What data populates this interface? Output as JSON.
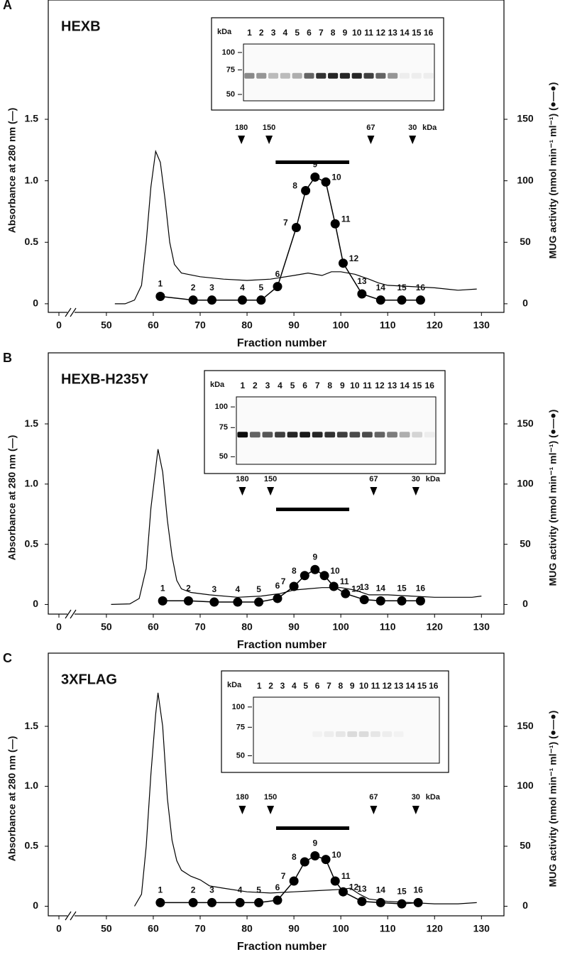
{
  "chart_data": [
    {
      "type": "line",
      "panel": "A",
      "title": "HEXB",
      "xlabel": "Fraction number",
      "ylabel": "Absorbance at 280 nm (—)",
      "y2label": "MUG activity (nmol min⁻¹ ml⁻¹) (●—●)",
      "xlim": [
        37.6,
        134.8
      ],
      "xticks": [
        0,
        50,
        60,
        70,
        80,
        90,
        100,
        110,
        120,
        130
      ],
      "axis_break": true,
      "ylim": [
        -0.07,
        2.47
      ],
      "yticks": [
        0,
        0.5,
        {
          "value": 1,
          "label": "1.0"
        },
        1.5
      ],
      "y2lim": [
        -7,
        247
      ],
      "y2ticks": [
        0,
        50,
        100,
        150
      ],
      "series": [
        {
          "color": "#000000",
          "x": [
            51.8,
            54,
            56,
            57.5,
            58.5,
            59.5,
            60.5,
            61.5,
            62.5,
            63.5,
            64.5,
            66,
            70,
            75,
            80,
            85,
            90,
            93,
            96,
            98,
            100,
            103,
            106,
            108,
            110,
            115,
            120,
            125,
            129
          ],
          "values": [
            0,
            0,
            0.03,
            0.15,
            0.5,
            0.95,
            1.24,
            1.15,
            0.85,
            0.5,
            0.32,
            0.25,
            0.22,
            0.2,
            0.19,
            0.2,
            0.23,
            0.25,
            0.23,
            0.26,
            0.26,
            0.24,
            0.2,
            0.17,
            0.15,
            0.14,
            0.13,
            0.11,
            0.12
          ]
        },
        {
          "color": "#000000",
          "axis": "y2",
          "marker": "circle",
          "x": [
            61.5,
            68.5,
            72.5,
            79,
            83,
            86.5,
            90.5,
            92.5,
            94.5,
            96.8,
            98.8,
            100.5,
            104.5,
            108.5,
            113,
            117
          ],
          "values": [
            6,
            3,
            3,
            3,
            3,
            14,
            62,
            92,
            103,
            99,
            65,
            33,
            8,
            3,
            3,
            3
          ],
          "point_labels": [
            1,
            2,
            3,
            4,
            5,
            6,
            7,
            8,
            9,
            10,
            11,
            12,
            13,
            14,
            15,
            16
          ]
        }
      ],
      "size_markers": [
        {
          "kda": 180,
          "fraction": 78.8
        },
        {
          "kda": 150,
          "fraction": 84.7
        },
        {
          "kda": 67,
          "fraction": 106.4
        },
        {
          "kda": 30,
          "fraction": 115.3
        }
      ],
      "size_marker_unit": "kDa",
      "pooled_range": [
        86.1,
        101.8
      ],
      "gel": {
        "unit": "kDa",
        "lanes": [
          1,
          2,
          3,
          4,
          5,
          6,
          7,
          8,
          9,
          10,
          11,
          12,
          13,
          14,
          15,
          16
        ],
        "ladder": [
          100,
          75,
          50
        ],
        "band_intensity": [
          0.45,
          0.4,
          0.25,
          0.25,
          0.3,
          0.6,
          0.8,
          0.85,
          0.85,
          0.85,
          0.75,
          0.6,
          0.4,
          0.05,
          0.05,
          0.05
        ]
      }
    },
    {
      "type": "line",
      "panel": "B",
      "title": "HEXB-H235Y",
      "xlabel": "Fraction number",
      "ylabel": "Absorbance at 280 nm (—)",
      "y2label": "MUG activity (nmol min⁻¹ ml⁻¹) (●—●)",
      "xlim": [
        37.6,
        134.8
      ],
      "xticks": [
        0,
        50,
        60,
        70,
        80,
        90,
        100,
        110,
        120,
        130
      ],
      "axis_break": true,
      "ylim": [
        -0.08,
        2.09
      ],
      "yticks": [
        0,
        0.5,
        {
          "value": 1,
          "label": "1.0"
        },
        1.5
      ],
      "y2lim": [
        -8,
        209
      ],
      "y2ticks": [
        0,
        50,
        100,
        150
      ],
      "series": [
        {
          "color": "#000000",
          "x": [
            51,
            55,
            57,
            58.5,
            59.5,
            61,
            62,
            63,
            64,
            65,
            66,
            68,
            72,
            78,
            83,
            87,
            90,
            93,
            96,
            100,
            103,
            106,
            110,
            115,
            120,
            125,
            128,
            130
          ],
          "values": [
            0,
            0.005,
            0.05,
            0.3,
            0.8,
            1.29,
            1.1,
            0.7,
            0.4,
            0.2,
            0.13,
            0.1,
            0.08,
            0.06,
            0.07,
            0.09,
            0.12,
            0.13,
            0.14,
            0.14,
            0.12,
            0.08,
            0.08,
            0.07,
            0.06,
            0.06,
            0.06,
            0.07
          ]
        },
        {
          "color": "#000000",
          "axis": "y2",
          "marker": "circle",
          "x": [
            62,
            67.5,
            73,
            78,
            82.5,
            86.5,
            90,
            92.3,
            94.5,
            96.5,
            98.5,
            101,
            105,
            108.5,
            113,
            117
          ],
          "values": [
            3,
            3,
            2,
            2,
            2,
            5,
            15,
            24,
            29,
            24,
            15,
            9,
            4,
            3,
            3,
            3
          ],
          "point_labels": [
            1,
            2,
            3,
            4,
            5,
            6,
            7,
            8,
            9,
            10,
            11,
            12,
            13,
            14,
            15,
            16
          ]
        }
      ],
      "size_markers": [
        {
          "kda": 180,
          "fraction": 79
        },
        {
          "kda": 150,
          "fraction": 85
        },
        {
          "kda": 67,
          "fraction": 107
        },
        {
          "kda": 30,
          "fraction": 116
        }
      ],
      "size_marker_unit": "kDa",
      "pooled_range": [
        86.2,
        101.8
      ],
      "gel": {
        "unit": "kDa",
        "lanes": [
          1,
          2,
          3,
          4,
          5,
          6,
          7,
          8,
          9,
          10,
          11,
          12,
          13,
          14,
          15,
          16
        ],
        "ladder": [
          100,
          75,
          50
        ],
        "band_intensity": [
          0.95,
          0.6,
          0.65,
          0.75,
          0.85,
          0.9,
          0.85,
          0.8,
          0.75,
          0.7,
          0.7,
          0.6,
          0.5,
          0.3,
          0.15,
          0.05
        ]
      }
    },
    {
      "type": "line",
      "panel": "C",
      "title": "3XFLAG",
      "xlabel": "Fraction number",
      "ylabel": "Absorbance at 280 nm (—)",
      "y2label": "MUG activity (nmol min⁻¹ ml⁻¹) (●—●)",
      "xlim": [
        37.6,
        134.8
      ],
      "xticks": [
        0,
        50,
        60,
        70,
        80,
        90,
        100,
        110,
        120,
        130
      ],
      "axis_break": true,
      "ylim": [
        -0.08,
        2.11
      ],
      "yticks": [
        0,
        0.5,
        {
          "value": 1,
          "label": "1.0"
        },
        1.5
      ],
      "y2lim": [
        -8,
        211
      ],
      "y2ticks": [
        0,
        50,
        100,
        150
      ],
      "series": [
        {
          "color": "#000000",
          "x": [
            56,
            57.5,
            58.5,
            59.5,
            60.5,
            61,
            62,
            63,
            64,
            65,
            66,
            68,
            70,
            72,
            75,
            80,
            85,
            90,
            95,
            100,
            102,
            104,
            106,
            110,
            115,
            120,
            125,
            129
          ],
          "values": [
            0,
            0.1,
            0.5,
            1.1,
            1.6,
            1.78,
            1.5,
            0.9,
            0.55,
            0.38,
            0.3,
            0.25,
            0.22,
            0.17,
            0.15,
            0.12,
            0.11,
            0.12,
            0.13,
            0.14,
            0.15,
            0.1,
            0.06,
            0.04,
            0.03,
            0.02,
            0.02,
            0.03
          ]
        },
        {
          "color": "#000000",
          "axis": "y2",
          "marker": "circle",
          "x": [
            61.5,
            68.5,
            72.5,
            78.5,
            82.5,
            86.5,
            90,
            92.3,
            94.5,
            96.8,
            98.8,
            100.5,
            104.5,
            108.5,
            113,
            116.5
          ],
          "values": [
            3,
            3,
            3,
            3,
            3,
            5,
            21,
            37,
            42,
            39,
            21,
            12,
            4,
            3,
            2,
            3
          ],
          "point_labels": [
            1,
            2,
            3,
            4,
            5,
            6,
            7,
            8,
            9,
            10,
            11,
            12,
            13,
            14,
            15,
            16
          ]
        }
      ],
      "size_markers": [
        {
          "kda": 180,
          "fraction": 79
        },
        {
          "kda": 150,
          "fraction": 85
        },
        {
          "kda": 67,
          "fraction": 107
        },
        {
          "kda": 30,
          "fraction": 116
        }
      ],
      "size_marker_unit": "kDa",
      "pooled_range": [
        86.2,
        101.8
      ],
      "gel": {
        "unit": "kDa",
        "lanes": [
          1,
          2,
          3,
          4,
          5,
          6,
          7,
          8,
          9,
          10,
          11,
          12,
          13,
          14,
          15,
          16
        ],
        "ladder": [
          100,
          75,
          50
        ],
        "band_intensity": [
          0,
          0,
          0,
          0,
          0,
          0.03,
          0.05,
          0.08,
          0.12,
          0.12,
          0.08,
          0.05,
          0.03,
          0,
          0,
          0
        ]
      }
    }
  ]
}
